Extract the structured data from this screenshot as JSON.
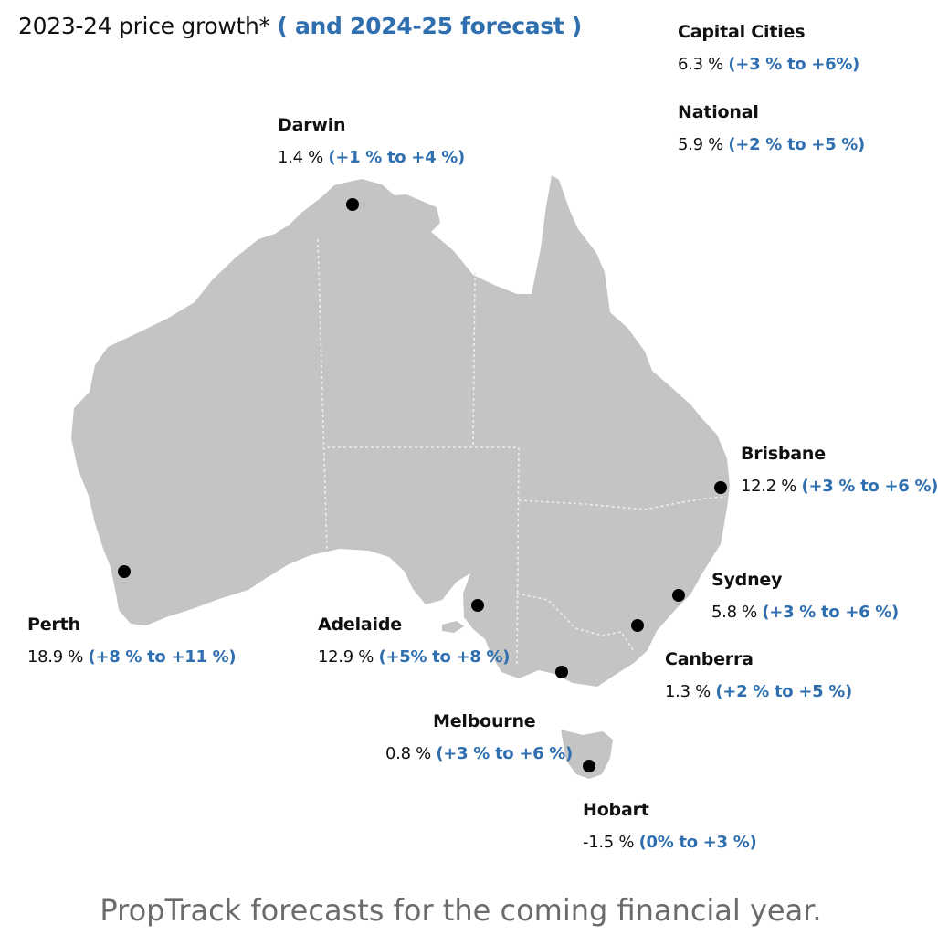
{
  "title": {
    "main": "2023-24 price growth*",
    "forecast": "( and 2024-25 forecast )"
  },
  "summary": [
    {
      "name": "Capital Cities",
      "growth": "6.3 %",
      "forecast": "(+3 % to +6%)"
    },
    {
      "name": "National",
      "growth": "5.9 %",
      "forecast": "(+2 % to +5 %)"
    }
  ],
  "cities": [
    {
      "name": "Darwin",
      "growth": "1.4 %",
      "forecast": "(+1 % to +4 %)"
    },
    {
      "name": "Brisbane",
      "growth": "12.2 %",
      "forecast": "(+3 % to +6 %)"
    },
    {
      "name": "Sydney",
      "growth": "5.8 %",
      "forecast": "(+3 % to +6 %)"
    },
    {
      "name": "Canberra",
      "growth": "1.3 %",
      "forecast": "(+2 % to +5 %)"
    },
    {
      "name": "Melbourne",
      "growth": "0.8 %",
      "forecast": "(+3 % to +6 %)"
    },
    {
      "name": "Hobart",
      "growth": "-1.5 %",
      "forecast": "(0% to +3 %)"
    },
    {
      "name": "Adelaide",
      "growth": "12.9 %",
      "forecast": "(+5% to +8 %)"
    },
    {
      "name": "Perth",
      "growth": "18.9 %",
      "forecast": "(+8 % to +11 %)"
    }
  ],
  "caption": "PropTrack forecasts for the coming financial year.",
  "colors": {
    "land": "#c4c4c4",
    "forecast_text": "#2f6fb0",
    "dot": "#000000",
    "caption": "#6b6b6b"
  }
}
